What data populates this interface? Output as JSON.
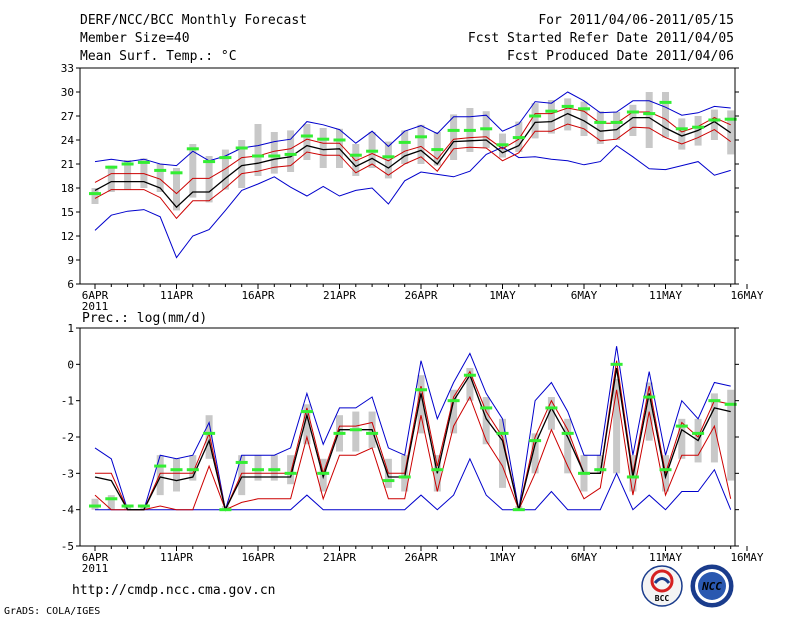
{
  "header": {
    "title": "DERF/NCC/BCC Monthly Forecast",
    "member_size": "Member Size=40",
    "variable": "Mean Surf. Temp.: °C",
    "period": "For 2011/04/06-2011/05/15",
    "started": "Fcst Started Refer Date 2011/04/05",
    "produced": "Fcst Produced Date 2011/04/06"
  },
  "footer": {
    "url": "http://cmdp.ncc.cma.gov.cn",
    "grads": "GrADS: COLA/IGES",
    "logo_bcc": "BCC",
    "logo_ncc": "NCC"
  },
  "colors": {
    "max_min": "#0000cc",
    "spread": "#cc0000",
    "mean": "#000000",
    "marker": "#33ee33",
    "box": "#c8c8c8"
  },
  "chart_data": [
    {
      "type": "line",
      "title": "Mean Surf. Temp.: °C",
      "x_tick_labels": [
        "6APR",
        "11APR",
        "16APR",
        "21APR",
        "26APR",
        "1MAY",
        "6MAY",
        "11MAY",
        "16MAY"
      ],
      "year_label": "2011",
      "ylim": [
        6,
        33
      ],
      "y_ticks": [
        6,
        9,
        12,
        15,
        18,
        21,
        24,
        27,
        30,
        33
      ],
      "days": 40,
      "series": [
        {
          "name": "max",
          "values": [
            21.3,
            21.6,
            21.3,
            21.6,
            21.0,
            20.8,
            22.6,
            21.4,
            22.0,
            23.0,
            23.3,
            23.8,
            24.1,
            26.3,
            25.9,
            25.3,
            23.6,
            25.1,
            23.2,
            25.1,
            25.8,
            24.8,
            26.9,
            26.9,
            27.1,
            25.1,
            26.0,
            28.8,
            28.6,
            30.0,
            28.9,
            27.4,
            27.5,
            28.9,
            28.9,
            28.1,
            27.1,
            27.4,
            28.2,
            28.0
          ]
        },
        {
          "name": "upper",
          "values": [
            18.7,
            19.8,
            19.8,
            19.8,
            19.1,
            17.3,
            19.2,
            19.2,
            20.4,
            21.8,
            22.0,
            22.6,
            22.9,
            24.1,
            23.6,
            23.6,
            21.4,
            22.3,
            21.4,
            22.6,
            23.2,
            21.6,
            24.1,
            24.3,
            24.4,
            22.9,
            24.1,
            27.3,
            27.3,
            28.0,
            27.6,
            26.1,
            26.1,
            27.5,
            27.5,
            26.6,
            25.0,
            25.7,
            26.8,
            25.9
          ]
        },
        {
          "name": "mean",
          "values": [
            17.7,
            18.8,
            18.8,
            18.8,
            18.0,
            15.6,
            17.5,
            17.5,
            19.2,
            20.8,
            21.1,
            21.6,
            21.9,
            23.3,
            22.8,
            22.9,
            20.7,
            21.7,
            20.5,
            22.0,
            22.7,
            21.0,
            23.8,
            23.9,
            24.0,
            22.4,
            23.3,
            26.2,
            26.3,
            27.3,
            26.4,
            25.1,
            25.3,
            26.8,
            26.8,
            25.5,
            24.5,
            25.2,
            26.3,
            24.9
          ]
        },
        {
          "name": "lower",
          "values": [
            16.7,
            17.8,
            17.8,
            17.8,
            16.8,
            14.2,
            16.4,
            16.4,
            18.0,
            19.8,
            20.1,
            20.6,
            20.8,
            22.5,
            22.1,
            22.1,
            19.9,
            21.0,
            19.6,
            21.0,
            21.9,
            20.1,
            22.9,
            23.1,
            23.0,
            21.4,
            22.4,
            25.1,
            25.1,
            26.0,
            25.4,
            23.9,
            24.1,
            25.6,
            25.5,
            24.3,
            23.5,
            24.3,
            25.3,
            23.8
          ]
        },
        {
          "name": "min",
          "values": [
            12.7,
            14.6,
            15.1,
            15.3,
            14.4,
            9.3,
            12.0,
            12.8,
            15.2,
            17.7,
            18.5,
            19.4,
            18.1,
            17.0,
            18.2,
            17.0,
            17.7,
            18.0,
            16.0,
            18.9,
            20.0,
            19.7,
            19.4,
            20.1,
            22.2,
            23.1,
            21.8,
            21.9,
            21.6,
            21.4,
            20.9,
            21.3,
            23.3,
            21.9,
            20.4,
            20.3,
            20.8,
            21.3,
            19.6,
            20.2
          ]
        },
        {
          "name": "marker",
          "values": [
            17.3,
            20.6,
            21.0,
            21.2,
            20.2,
            19.9,
            22.9,
            21.3,
            21.8,
            23.0,
            22.0,
            22.0,
            22.2,
            24.5,
            24.1,
            24.0,
            22.1,
            22.6,
            21.9,
            23.7,
            24.4,
            22.8,
            25.2,
            25.2,
            25.4,
            23.4,
            24.3,
            27.0,
            27.6,
            28.2,
            27.9,
            26.2,
            26.2,
            27.5,
            27.3,
            28.7,
            25.4,
            25.6,
            26.5,
            26.6
          ]
        },
        {
          "name": "box_high",
          "values": [
            18.0,
            20.8,
            21.5,
            21.7,
            21.0,
            20.5,
            23.5,
            22.0,
            22.8,
            24.0,
            26.0,
            25.0,
            25.2,
            26.0,
            25.5,
            25.4,
            23.5,
            25.0,
            23.8,
            25.2,
            25.9,
            25.0,
            27.2,
            28.0,
            27.6,
            24.8,
            26.3,
            28.6,
            29.0,
            29.2,
            28.8,
            27.6,
            27.5,
            28.4,
            30.0,
            30.0,
            26.7,
            27.0,
            27.8,
            27.7
          ]
        },
        {
          "name": "box_low",
          "values": [
            16.0,
            17.5,
            17.8,
            18.0,
            17.5,
            15.2,
            16.8,
            16.2,
            17.8,
            18.0,
            19.5,
            19.8,
            20.0,
            21.5,
            20.5,
            20.5,
            19.5,
            20.5,
            19.2,
            21.0,
            21.0,
            20.8,
            21.5,
            22.5,
            23.0,
            21.8,
            22.5,
            24.2,
            24.8,
            25.2,
            24.5,
            23.5,
            24.0,
            24.5,
            23.0,
            24.3,
            22.8,
            23.3,
            24.0,
            22.2
          ]
        }
      ]
    },
    {
      "type": "line",
      "title": "Prec.: log(mm/d)",
      "x_tick_labels": [
        "6APR",
        "11APR",
        "16APR",
        "21APR",
        "26APR",
        "1MAY",
        "6MAY",
        "11MAY",
        "16MAY"
      ],
      "year_label": "2011",
      "ylim": [
        -5,
        1
      ],
      "y_ticks": [
        -5,
        -4,
        -3,
        -2,
        -1,
        0,
        1
      ],
      "days": 40,
      "series": [
        {
          "name": "max",
          "values": [
            -2.3,
            -2.6,
            -4.0,
            -4.0,
            -2.5,
            -2.6,
            -2.5,
            -1.6,
            -4.0,
            -2.5,
            -2.5,
            -2.5,
            -2.3,
            -0.8,
            -2.2,
            -1.2,
            -1.2,
            -0.9,
            -2.3,
            -2.5,
            0.1,
            -1.5,
            -0.5,
            0.3,
            -0.8,
            -1.5,
            -4.0,
            -1.0,
            -0.5,
            -1.3,
            -2.5,
            -2.5,
            0.5,
            -2.5,
            -0.2,
            -2.5,
            -1.0,
            -1.5,
            -0.5,
            -0.6
          ]
        },
        {
          "name": "upper",
          "values": [
            -3.0,
            -3.0,
            -4.0,
            -4.0,
            -3.0,
            -3.0,
            -3.0,
            -1.9,
            -4.0,
            -3.0,
            -3.0,
            -3.0,
            -3.0,
            -1.2,
            -3.0,
            -1.7,
            -1.7,
            -1.6,
            -3.0,
            -3.0,
            -0.6,
            -2.8,
            -0.9,
            -0.2,
            -1.3,
            -2.0,
            -4.0,
            -2.0,
            -1.0,
            -1.8,
            -3.0,
            -3.0,
            0.1,
            -3.0,
            -0.6,
            -3.0,
            -1.6,
            -2.0,
            -1.0,
            -1.1
          ]
        },
        {
          "name": "mean",
          "values": [
            -3.1,
            -3.2,
            -4.0,
            -4.0,
            -3.1,
            -3.2,
            -3.1,
            -2.1,
            -4.0,
            -3.1,
            -3.1,
            -3.1,
            -3.1,
            -1.4,
            -3.1,
            -1.8,
            -1.8,
            -1.8,
            -3.1,
            -3.1,
            -0.8,
            -3.0,
            -1.0,
            -0.3,
            -1.5,
            -2.1,
            -4.0,
            -2.2,
            -1.2,
            -2.0,
            -3.0,
            -3.0,
            -0.1,
            -3.1,
            -0.8,
            -3.1,
            -1.8,
            -2.1,
            -1.2,
            -1.3
          ]
        },
        {
          "name": "lower",
          "values": [
            -3.6,
            -4.0,
            -4.0,
            -4.0,
            -3.9,
            -4.0,
            -4.0,
            -2.8,
            -4.0,
            -3.8,
            -3.7,
            -3.7,
            -3.7,
            -2.0,
            -3.7,
            -2.5,
            -2.5,
            -2.3,
            -3.7,
            -3.7,
            -1.4,
            -3.5,
            -1.7,
            -0.9,
            -2.1,
            -2.8,
            -4.0,
            -3.0,
            -1.8,
            -2.8,
            -3.7,
            -3.4,
            -0.7,
            -3.6,
            -1.3,
            -3.6,
            -2.5,
            -2.5,
            -1.7,
            -3.7
          ]
        },
        {
          "name": "min",
          "values": [
            -4.0,
            -4.0,
            -4.0,
            -4.0,
            -4.0,
            -4.0,
            -4.0,
            -4.0,
            -4.0,
            -4.0,
            -4.0,
            -4.0,
            -4.0,
            -3.6,
            -4.0,
            -4.0,
            -4.0,
            -4.0,
            -4.0,
            -4.0,
            -3.6,
            -4.0,
            -3.6,
            -2.6,
            -3.6,
            -4.0,
            -4.0,
            -4.0,
            -3.5,
            -4.0,
            -4.0,
            -4.0,
            -3.0,
            -4.0,
            -3.6,
            -4.0,
            -3.5,
            -3.5,
            -2.9,
            -4.0
          ]
        },
        {
          "name": "marker",
          "values": [
            -3.9,
            -3.7,
            -3.9,
            -3.9,
            -2.8,
            -2.9,
            -2.9,
            -1.9,
            -4.0,
            -2.7,
            -2.9,
            -2.9,
            -3.0,
            -1.3,
            -3.0,
            -1.9,
            -1.8,
            -1.9,
            -3.2,
            -3.1,
            -0.7,
            -2.9,
            -1.0,
            -0.3,
            -1.2,
            -1.9,
            -4.0,
            -2.1,
            -1.2,
            -1.9,
            -3.0,
            -2.9,
            0.0,
            -3.1,
            -0.9,
            -2.9,
            -1.7,
            -1.9,
            -1.0,
            -1.1
          ]
        },
        {
          "name": "box_high",
          "values": [
            -3.7,
            -3.6,
            -3.9,
            -3.9,
            -2.5,
            -2.6,
            -2.5,
            -1.4,
            -3.9,
            -2.5,
            -2.5,
            -2.5,
            -2.5,
            -1.1,
            -2.6,
            -1.4,
            -1.3,
            -1.3,
            -2.6,
            -2.5,
            -0.3,
            -2.5,
            -0.7,
            -0.1,
            -0.9,
            -1.5,
            -3.9,
            -1.9,
            -0.9,
            -1.5,
            -2.5,
            -2.5,
            -0.4,
            -2.5,
            -0.5,
            -2.5,
            -1.5,
            -1.5,
            -0.8,
            -0.7
          ]
        },
        {
          "name": "box_low",
          "values": [
            -4.0,
            -4.0,
            -4.0,
            -4.0,
            -3.6,
            -3.5,
            -3.2,
            -2.6,
            -4.0,
            -3.6,
            -3.2,
            -3.2,
            -3.3,
            -2.2,
            -3.5,
            -2.4,
            -2.4,
            -2.3,
            -3.4,
            -3.5,
            -1.9,
            -3.5,
            -1.9,
            -1.0,
            -2.2,
            -3.4,
            -4.0,
            -3.0,
            -1.8,
            -3.0,
            -3.5,
            -3.0,
            -3.0,
            -3.5,
            -2.1,
            -3.5,
            -2.6,
            -2.7,
            -2.7,
            -3.2
          ]
        }
      ]
    }
  ]
}
